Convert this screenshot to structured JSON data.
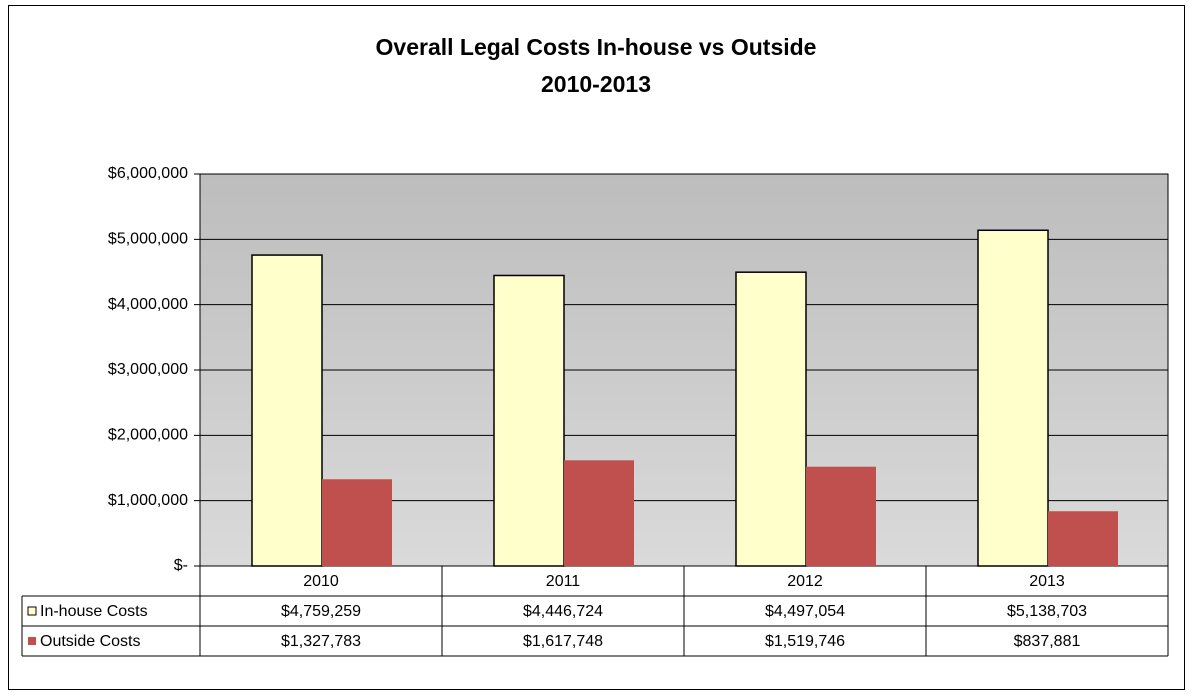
{
  "chart_data": {
    "type": "bar",
    "title": "Overall Legal Costs In-house vs Outside",
    "subtitle": "2010-2013",
    "categories": [
      "2010",
      "2011",
      "2012",
      "2013"
    ],
    "series": [
      {
        "name": "In-house Costs",
        "color": "#ffffcc",
        "values": [
          4759259,
          4446724,
          4497054,
          5138703
        ],
        "value_labels": [
          "$4,759,259",
          "$4,446,724",
          "$4,497,054",
          "$5,138,703"
        ]
      },
      {
        "name": "Outside Costs",
        "color": "#c0504d",
        "values": [
          1327783,
          1617748,
          1519746,
          837881
        ],
        "value_labels": [
          "$1,327,783",
          "$1,617,748",
          "$1,519,746",
          "$837,881"
        ]
      }
    ],
    "ylim": [
      0,
      6000000
    ],
    "yticks": [
      {
        "value": 0,
        "label": "$-"
      },
      {
        "value": 1000000,
        "label": "$1,000,000"
      },
      {
        "value": 2000000,
        "label": "$2,000,000"
      },
      {
        "value": 3000000,
        "label": "$3,000,000"
      },
      {
        "value": 4000000,
        "label": "$4,000,000"
      },
      {
        "value": 5000000,
        "label": "$5,000,000"
      },
      {
        "value": 6000000,
        "label": "$6,000,000"
      }
    ],
    "grid": true
  }
}
